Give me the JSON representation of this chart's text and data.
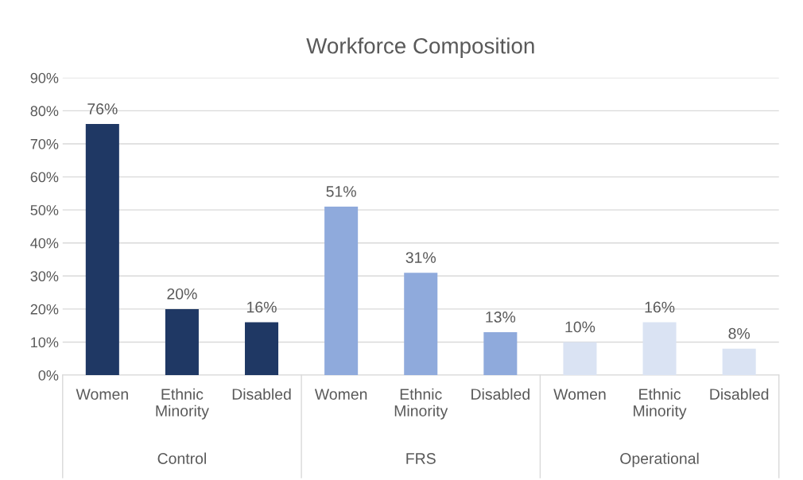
{
  "chart_data": {
    "type": "bar",
    "title": "Workforce Composition",
    "categories": [
      "Women",
      "Ethnic\nMinority",
      "Disabled",
      "Women",
      "Ethnic\nMinority",
      "Disabled",
      "Women",
      "Ethnic\nMinority",
      "Disabled"
    ],
    "values": [
      76,
      20,
      16,
      51,
      31,
      13,
      10,
      16,
      8
    ],
    "value_labels": [
      "76%",
      "20%",
      "16%",
      "51%",
      "31%",
      "13%",
      "10%",
      "16%",
      "8%"
    ],
    "colors": [
      "#1f3864",
      "#1f3864",
      "#1f3864",
      "#8faadc",
      "#8faadc",
      "#8faadc",
      "#dae3f3",
      "#dae3f3",
      "#dae3f3"
    ],
    "annotations": [
      "Control",
      "FRS",
      "Operational"
    ],
    "ylim": [
      0,
      90
    ],
    "yticks": [
      {
        "value": 0,
        "label": "0%"
      },
      {
        "value": 10,
        "label": "10%"
      },
      {
        "value": 20,
        "label": "20%"
      },
      {
        "value": 30,
        "label": "30%"
      },
      {
        "value": 40,
        "label": "40%"
      },
      {
        "value": 50,
        "label": "50%"
      },
      {
        "value": 60,
        "label": "60%"
      },
      {
        "value": 70,
        "label": "70%"
      },
      {
        "value": 80,
        "label": "80%"
      },
      {
        "value": 90,
        "label": "90%"
      }
    ],
    "grid": "y"
  }
}
